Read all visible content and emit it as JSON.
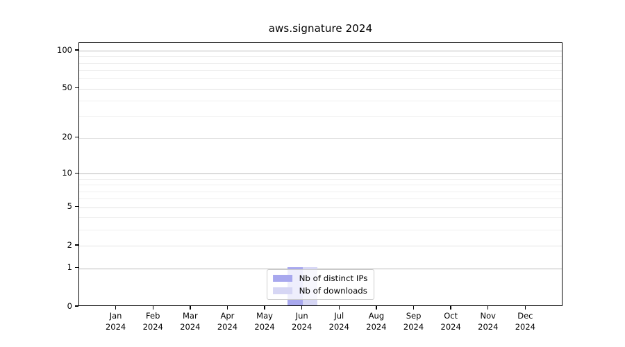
{
  "chart_data": {
    "type": "bar",
    "title": "aws.signature 2024",
    "categories": [
      "Jan",
      "Feb",
      "Mar",
      "Apr",
      "May",
      "Jun",
      "Jul",
      "Aug",
      "Sep",
      "Oct",
      "Nov",
      "Dec"
    ],
    "x_tick_year": "2024",
    "series": [
      {
        "name": "Nb of distinct IPs",
        "color": "#a8a8ee",
        "values": [
          0,
          0,
          0,
          0,
          0,
          1,
          0,
          0,
          0,
          0,
          0,
          0
        ]
      },
      {
        "name": "Nb of downloads",
        "color": "#d6d6f4",
        "values": [
          0,
          0,
          0,
          0,
          0,
          1,
          0,
          0,
          0,
          0,
          0,
          0
        ]
      }
    ],
    "xlabel": "",
    "ylabel": "",
    "y_axis": {
      "scale": "log1p",
      "ticks": [
        0,
        1,
        2,
        5,
        10,
        20,
        50,
        100
      ],
      "minor_ticks": [
        3,
        4,
        6,
        7,
        8,
        9,
        30,
        40,
        60,
        70,
        80,
        90
      ],
      "decade_ticks": [
        1,
        10,
        100
      ],
      "max": 115
    },
    "legend": {
      "position": "lower center",
      "entries": [
        "Nb of distinct IPs",
        "Nb of downloads"
      ]
    },
    "grid": {
      "orientation": "horizontal",
      "major_on": true,
      "minor_on": true
    }
  },
  "colors": {
    "background": "#ffffff",
    "spine": "#000000",
    "text": "#000000",
    "grid_decade": "#b9b9b9",
    "grid_labeled": "#e2e2e2",
    "grid_minor": "#efefef",
    "legend_border": "#cccccc",
    "legend_background": "rgba(255,255,255,0.8)",
    "bar_distinct_ips": "#a8a8ee",
    "bar_downloads": "#d6d6f4"
  }
}
